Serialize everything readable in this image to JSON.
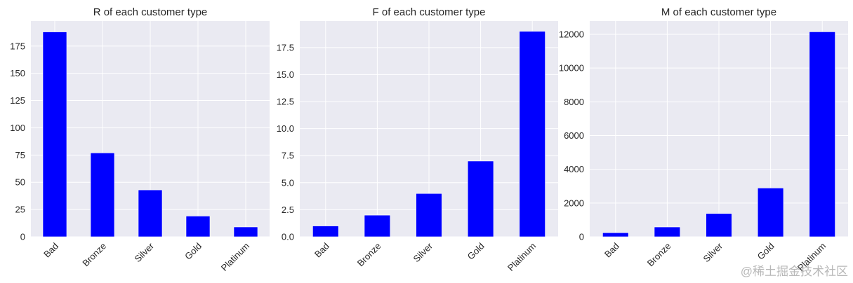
{
  "chart_data": [
    {
      "type": "bar",
      "title": "R of each customer type",
      "categories": [
        "Bad",
        "Bronze",
        "Silver",
        "Gold",
        "Platinum"
      ],
      "values": [
        188,
        77,
        43,
        19,
        9
      ],
      "ylim": [
        0,
        198
      ],
      "yticks": [
        0,
        25,
        50,
        75,
        100,
        125,
        150,
        175
      ],
      "ytick_labels": [
        "0",
        "25",
        "50",
        "75",
        "100",
        "125",
        "150",
        "175"
      ],
      "grid": true,
      "bar_color": "#0000ff"
    },
    {
      "type": "bar",
      "title": "F of each customer type",
      "categories": [
        "Bad",
        "Bronze",
        "Silver",
        "Gold",
        "Platinum"
      ],
      "values": [
        1,
        2,
        4,
        7,
        19
      ],
      "ylim": [
        0,
        19.95
      ],
      "yticks": [
        0,
        2.5,
        5,
        7.5,
        10,
        12.5,
        15,
        17.5
      ],
      "ytick_labels": [
        "0.0",
        "2.5",
        "5.0",
        "7.5",
        "10.0",
        "12.5",
        "15.0",
        "17.5"
      ],
      "grid": true,
      "bar_color": "#0000ff"
    },
    {
      "type": "bar",
      "title": "M of each customer type",
      "categories": [
        "Bad",
        "Bronze",
        "Silver",
        "Gold",
        "Platinum"
      ],
      "values": [
        240,
        580,
        1380,
        2890,
        12150
      ],
      "ylim": [
        0,
        12790
      ],
      "yticks": [
        0,
        2000,
        4000,
        6000,
        8000,
        10000,
        12000
      ],
      "ytick_labels": [
        "0",
        "2000",
        "4000",
        "6000",
        "8000",
        "10000",
        "12000"
      ],
      "grid": true,
      "bar_color": "#0000ff"
    }
  ],
  "watermark": "@稀土掘金技术社区",
  "colors": {
    "axes_bg": "#eaeaf2",
    "grid": "#ffffff",
    "bar": "#0000ff"
  }
}
